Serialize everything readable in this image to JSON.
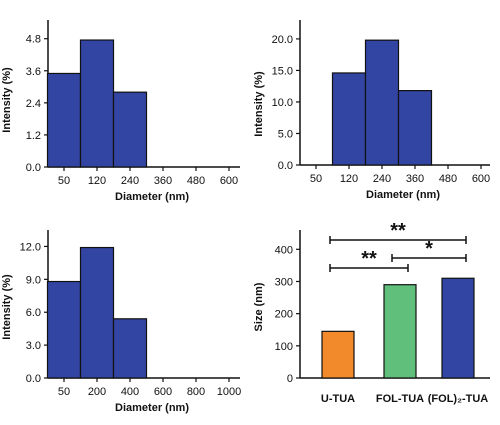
{
  "chart_data": [
    {
      "type": "bar",
      "panel": "top-left",
      "xlabel": "Diameter (nm)",
      "ylabel": "Intensity (%)",
      "ylim": [
        0,
        5.5
      ],
      "yticks": [
        "0.0",
        "1.2",
        "2.4",
        "3.6",
        "4.8"
      ],
      "xticks": [
        "50",
        "120",
        "240",
        "360",
        "480",
        "600"
      ],
      "categories": [
        "50",
        "120",
        "240"
      ],
      "values": [
        3.5,
        4.75,
        2.8
      ],
      "color": "#3345a3"
    },
    {
      "type": "bar",
      "panel": "top-right",
      "xlabel": "Diameter (nm)",
      "ylabel": "Intensity (%)",
      "ylim": [
        0,
        23
      ],
      "yticks": [
        "0.0",
        "5.0",
        "10.0",
        "15.0",
        "20.0"
      ],
      "xticks": [
        "50",
        "120",
        "240",
        "360",
        "480",
        "600"
      ],
      "categories": [
        "120",
        "240",
        "360"
      ],
      "values": [
        14.6,
        19.8,
        11.8
      ],
      "color": "#3345a3"
    },
    {
      "type": "bar",
      "panel": "bottom-left",
      "xlabel": "Diameter (nm)",
      "ylabel": "Intensity (%)",
      "ylim": [
        0,
        13.5
      ],
      "yticks": [
        "0.0",
        "3.0",
        "6.0",
        "9.0",
        "12.0"
      ],
      "xticks": [
        "50",
        "200",
        "400",
        "600",
        "800",
        "1000"
      ],
      "categories": [
        "50",
        "200",
        "400"
      ],
      "values": [
        8.8,
        11.9,
        5.4
      ],
      "color": "#3345a3"
    },
    {
      "type": "bar",
      "panel": "bottom-right",
      "xlabel": "",
      "ylabel": "Size (nm)",
      "ylim": [
        0,
        460
      ],
      "yticks": [
        "0",
        "100",
        "200",
        "300",
        "400"
      ],
      "categories": [
        "U-TUA",
        "FOL-TUA",
        "(FOL)₂-TUA"
      ],
      "values": [
        145,
        290,
        310
      ],
      "colors": [
        "#f28a2b",
        "#5fbf7b",
        "#3345a3"
      ],
      "significance": [
        {
          "from": 0,
          "to": 1,
          "label": "**"
        },
        {
          "from": 1,
          "to": 2,
          "label": "*"
        },
        {
          "from": 0,
          "to": 2,
          "label": "**"
        }
      ]
    }
  ]
}
